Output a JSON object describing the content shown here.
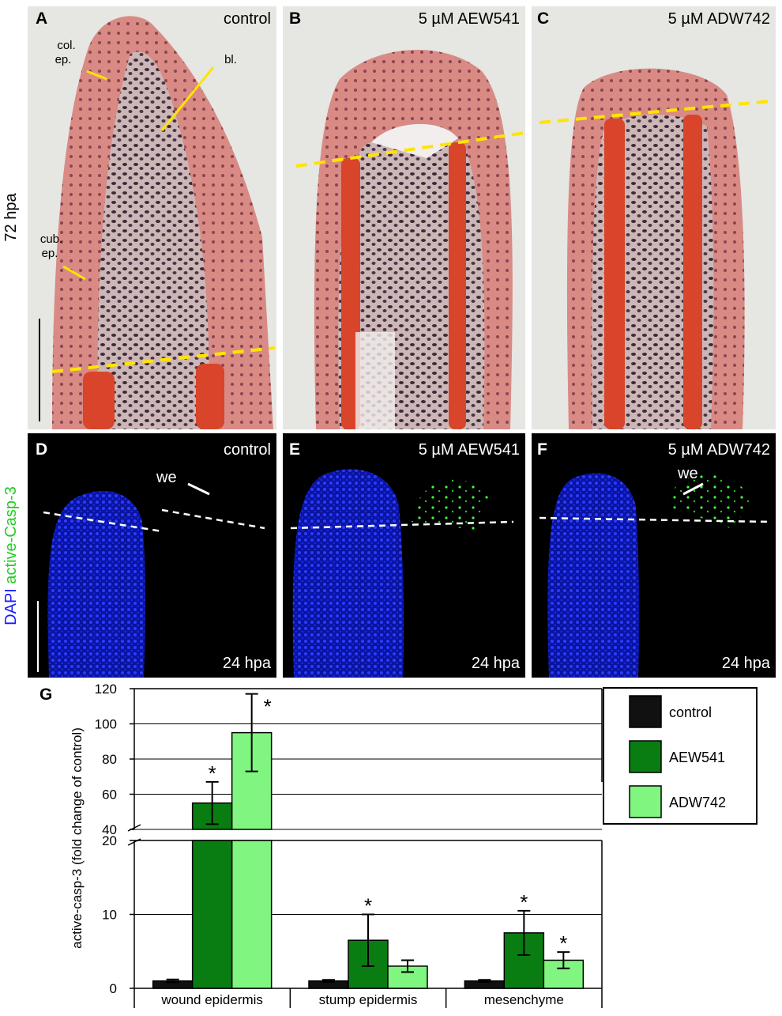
{
  "side_labels": {
    "top": "72 hpa",
    "bottom_blue": "DAPI",
    "bottom_green": "active-Casp-3"
  },
  "panels": [
    {
      "letter": "A",
      "label": "control",
      "notes": [
        "col.",
        "ep.",
        "bl.",
        "cub.",
        "ep."
      ]
    },
    {
      "letter": "B",
      "label": "5 µM AEW541"
    },
    {
      "letter": "C",
      "label": "5 µM ADW742"
    },
    {
      "letter": "D",
      "label": "control",
      "time": "24 hpa",
      "note": "we"
    },
    {
      "letter": "E",
      "label": "5 µM AEW541",
      "time": "24 hpa"
    },
    {
      "letter": "F",
      "label": "5 µM ADW742",
      "time": "24 hpa",
      "note": "we"
    }
  ],
  "chart_data": {
    "type": "bar",
    "letter": "G",
    "y_label": "active-casp-3  (fold change of control)",
    "categories": [
      "wound epidermis",
      "stump epidermis",
      "mesenchyme"
    ],
    "series": [
      {
        "name": "control",
        "color": "#111111",
        "values": [
          1,
          1,
          1
        ],
        "errors": [
          0.2,
          0.15,
          0.15
        ]
      },
      {
        "name": "AEW541",
        "color": "#0a7d12",
        "values": [
          55,
          6.5,
          7.5
        ],
        "errors": [
          12,
          3.5,
          3
        ],
        "significance": [
          "*",
          "*",
          "*"
        ]
      },
      {
        "name": "ADW742",
        "color": "#80f580",
        "values": [
          95,
          3,
          3.8
        ],
        "errors": [
          22,
          0.8,
          1.1
        ],
        "significance": [
          "*",
          null,
          "*"
        ]
      }
    ],
    "ylim": [
      0,
      120
    ],
    "axis_break": [
      20,
      40
    ],
    "yticks": [
      0,
      10,
      20,
      40,
      60,
      80,
      100,
      120
    ],
    "grid": true,
    "legend": "right"
  }
}
